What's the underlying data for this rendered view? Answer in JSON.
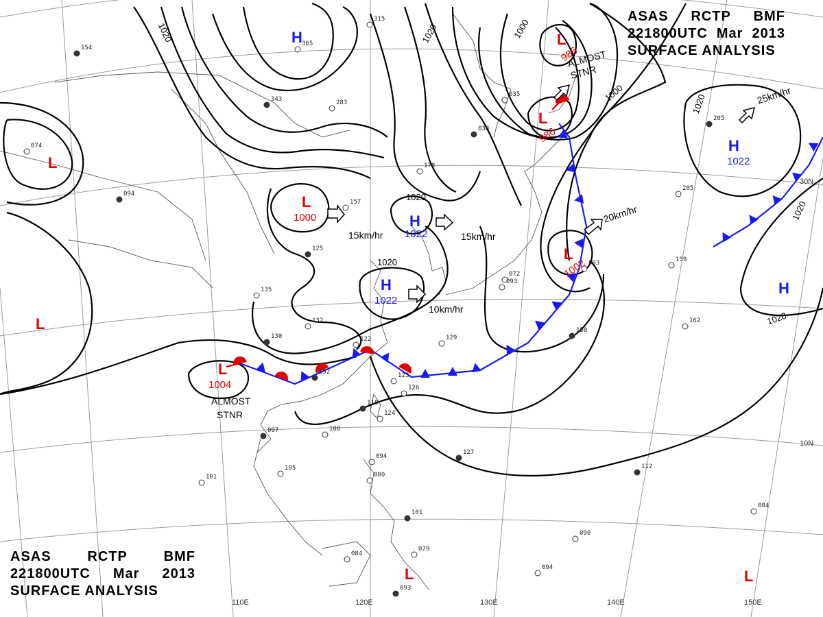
{
  "title": {
    "top_right": {
      "row1": [
        "ASAS",
        "RCTP",
        "BMF"
      ],
      "row2": [
        "221800UTC",
        "Mar",
        "2013"
      ],
      "row3": "SURFACE ANALYSIS"
    },
    "bottom_left": {
      "row1": [
        "ASAS",
        "RCTP",
        "BMF"
      ],
      "row2": [
        "221800UTC",
        "Mar",
        "2013"
      ],
      "row3": "SURFACE ANALYSIS"
    }
  },
  "colors": {
    "high": "#1a1aee",
    "low": "#e00000",
    "cold_front": "#1a1aee",
    "warm_front": "#e00000",
    "isobar": "#000000",
    "grid": "#9a9a9a"
  },
  "longitude_labels": [
    "110E",
    "120E",
    "130E",
    "140E",
    "150E"
  ],
  "latitude_labels": [
    "30N",
    "10N"
  ],
  "pressure_centers": [
    {
      "type": "H",
      "value": "",
      "name": "high-north-mongolia"
    },
    {
      "type": "L",
      "value": "",
      "name": "low-far-west"
    },
    {
      "type": "L",
      "value": "",
      "name": "low-west-china"
    },
    {
      "type": "L",
      "value": "1000",
      "name": "low-north-china"
    },
    {
      "type": "H",
      "value": "1022",
      "name": "high-korea"
    },
    {
      "type": "H",
      "value": "1022",
      "name": "high-yellow-sea"
    },
    {
      "type": "L",
      "value": "1004",
      "name": "low-south-china"
    },
    {
      "type": "L",
      "value": "986",
      "name": "low-okhotsk-north"
    },
    {
      "type": "L",
      "value": "986",
      "name": "low-okhotsk"
    },
    {
      "type": "L",
      "value": "1002",
      "name": "low-japan-east"
    },
    {
      "type": "H",
      "value": "1022",
      "name": "high-pacific-north"
    },
    {
      "type": "H",
      "value": "",
      "name": "high-pacific-east"
    },
    {
      "type": "L",
      "value": "",
      "name": "low-philippines"
    },
    {
      "type": "L",
      "value": "",
      "name": "low-far-east"
    }
  ],
  "isobar_labels": [
    {
      "text": "1020",
      "name": "isobar-1020-nw"
    },
    {
      "text": "1020",
      "name": "isobar-1020-north"
    },
    {
      "text": "1000",
      "name": "isobar-1000-north"
    },
    {
      "text": "1000",
      "name": "isobar-1000-east"
    },
    {
      "text": "1020",
      "name": "isobar-1020-korea"
    },
    {
      "text": "1020",
      "name": "isobar-1020-yellow-sea"
    },
    {
      "text": "1020",
      "name": "isobar-1020-pacific"
    },
    {
      "text": "1020",
      "name": "isobar-1020-east"
    },
    {
      "text": "1020",
      "name": "isobar-1020-se"
    }
  ],
  "movement_labels": [
    {
      "text": "15km/hr",
      "name": "motion-low-north-china"
    },
    {
      "text": "15km/hr",
      "name": "motion-high-korea"
    },
    {
      "text": "10km/hr",
      "name": "motion-high-yellow-sea"
    },
    {
      "text": "20km/hr",
      "name": "motion-low-japan"
    },
    {
      "text": "25km/hr",
      "name": "motion-high-pacific"
    }
  ],
  "status_labels": [
    {
      "lines": [
        "ALMOST",
        "STNR"
      ],
      "name": "status-south-china-low"
    },
    {
      "lines": [
        "ALMOST",
        "STNR"
      ],
      "name": "status-okhotsk-low"
    }
  ],
  "station_plots": [
    {
      "text": "154",
      "name": "stn-1"
    },
    {
      "text": "365",
      "name": "stn-2"
    },
    {
      "text": "315",
      "name": "stn-3"
    },
    {
      "text": "343",
      "name": "stn-4"
    },
    {
      "text": "283",
      "name": "stn-5"
    },
    {
      "text": "074",
      "name": "stn-6"
    },
    {
      "text": "094",
      "name": "stn-7"
    },
    {
      "text": "157",
      "name": "stn-8"
    },
    {
      "text": "178",
      "name": "stn-9"
    },
    {
      "text": "125",
      "name": "stn-10"
    },
    {
      "text": "135",
      "name": "stn-11"
    },
    {
      "text": "132",
      "name": "stn-12"
    },
    {
      "text": "130",
      "name": "stn-13"
    },
    {
      "text": "122",
      "name": "stn-14"
    },
    {
      "text": "129",
      "name": "stn-15"
    },
    {
      "text": "092",
      "name": "stn-16"
    },
    {
      "text": "123",
      "name": "stn-17"
    },
    {
      "text": "126",
      "name": "stn-18"
    },
    {
      "text": "118",
      "name": "stn-19"
    },
    {
      "text": "124",
      "name": "stn-20"
    },
    {
      "text": "108",
      "name": "stn-21"
    },
    {
      "text": "097",
      "name": "stn-22"
    },
    {
      "text": "105",
      "name": "stn-23"
    },
    {
      "text": "101",
      "name": "stn-24"
    },
    {
      "text": "127",
      "name": "stn-25"
    },
    {
      "text": "094",
      "name": "stn-26"
    },
    {
      "text": "080",
      "name": "stn-27"
    },
    {
      "text": "101",
      "name": "stn-28"
    },
    {
      "text": "079",
      "name": "stn-29"
    },
    {
      "text": "084",
      "name": "stn-30"
    },
    {
      "text": "093",
      "name": "stn-31"
    },
    {
      "text": "094",
      "name": "stn-32"
    },
    {
      "text": "090",
      "name": "stn-33"
    },
    {
      "text": "112",
      "name": "stn-34"
    },
    {
      "text": "084",
      "name": "stn-35"
    },
    {
      "text": "162",
      "name": "stn-36"
    },
    {
      "text": "150",
      "name": "stn-37"
    },
    {
      "text": "159",
      "name": "stn-38"
    },
    {
      "text": "205",
      "name": "stn-39"
    },
    {
      "text": "205",
      "name": "stn-40"
    },
    {
      "text": "093",
      "name": "stn-41"
    },
    {
      "text": "072",
      "name": "stn-42"
    },
    {
      "text": "038",
      "name": "stn-43"
    },
    {
      "text": "035",
      "name": "stn-44"
    },
    {
      "text": "093",
      "name": "stn-45"
    }
  ]
}
